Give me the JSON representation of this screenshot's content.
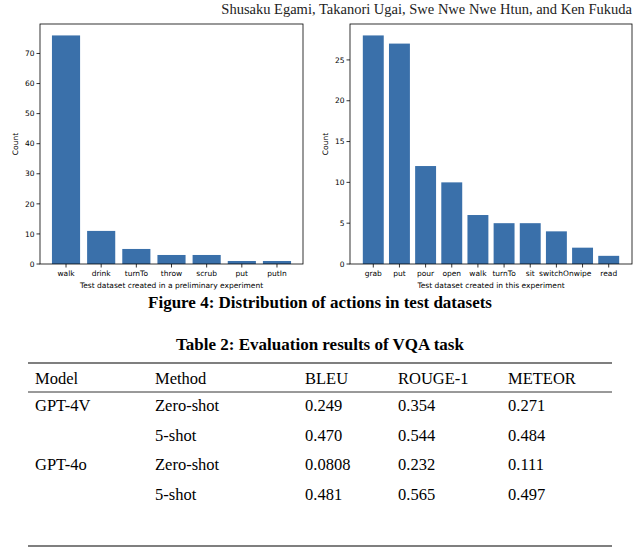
{
  "header": {
    "authors": "Shusaku Egami, Takanori Ugai, Swe Nwe Nwe Htun, and Ken Fukuda"
  },
  "chart_data": [
    {
      "type": "bar",
      "x_label": "Test dataset created in a preliminary experiment",
      "y_label": "Count",
      "categories": [
        "walk",
        "drink",
        "turnTo",
        "throw",
        "scrub",
        "put",
        "putIn"
      ],
      "values": [
        76,
        11,
        5,
        3,
        3,
        1,
        1
      ],
      "color": "#3a70aa",
      "ylim": [
        0,
        79.8
      ],
      "yticks": [
        0,
        10,
        20,
        30,
        40,
        50,
        60,
        70
      ],
      "grid": false
    },
    {
      "type": "bar",
      "x_label": "Test dataset created in this experiment",
      "y_label": "Count",
      "categories": [
        "grab",
        "put",
        "pour",
        "open",
        "walk",
        "turnTo",
        "sit",
        "switchOn",
        "wipe",
        "read"
      ],
      "values": [
        28,
        27,
        12,
        10,
        6,
        5,
        5,
        4,
        2,
        1
      ],
      "color": "#3a70aa",
      "ylim": [
        0,
        29.4
      ],
      "yticks": [
        0,
        5,
        10,
        15,
        20,
        25
      ],
      "grid": false
    }
  ],
  "figure_caption": "Figure 4: Distribution of actions in test datasets",
  "table": {
    "caption": "Table 2: Evaluation results of VQA task",
    "columns": [
      "Model",
      "Method",
      "BLEU",
      "ROUGE-1",
      "METEOR"
    ],
    "rows": [
      [
        "GPT-4V",
        "Zero-shot",
        "0.249",
        "0.354",
        "0.271"
      ],
      [
        null,
        "5-shot",
        "0.470",
        "0.544",
        "0.484"
      ],
      [
        "GPT-4o",
        "Zero-shot",
        "0.0808",
        "0.232",
        "0.111"
      ],
      [
        null,
        "5-shot",
        "0.481",
        "0.565",
        "0.497"
      ]
    ]
  }
}
